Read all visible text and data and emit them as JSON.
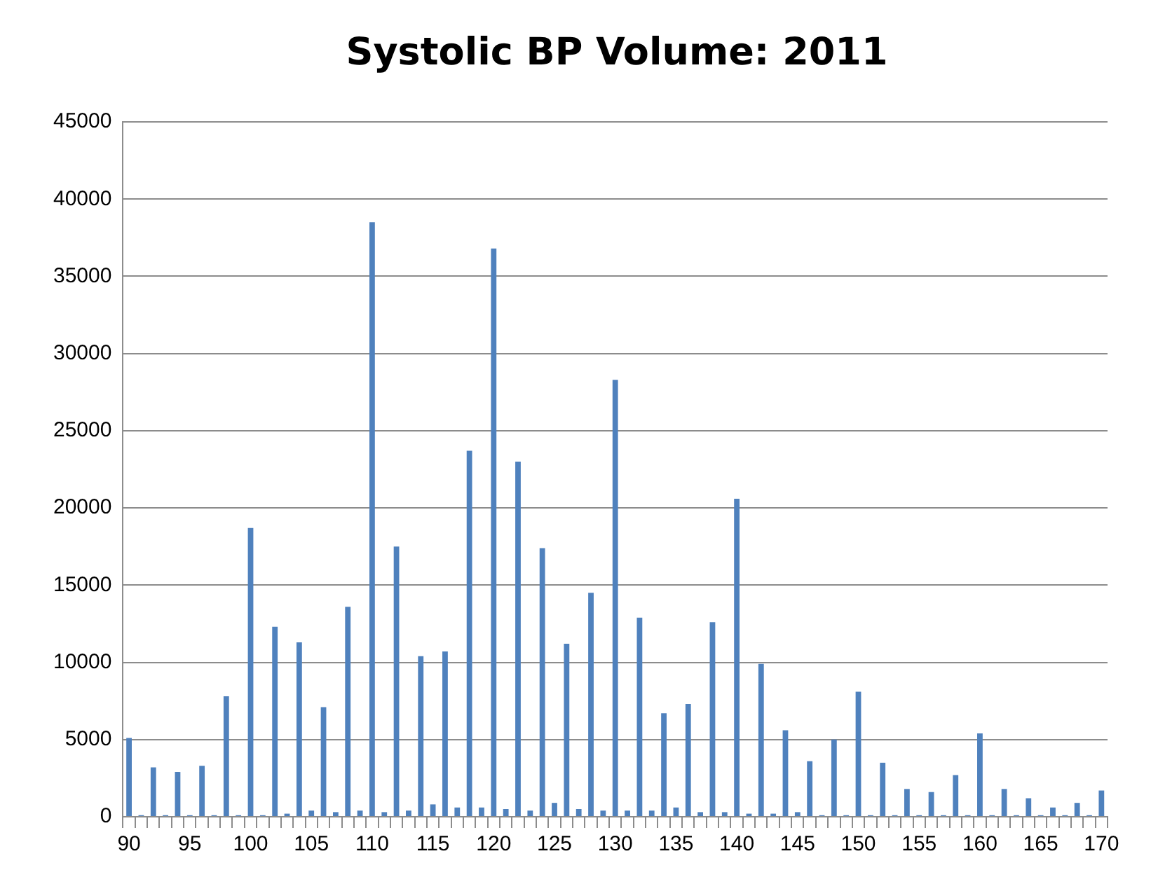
{
  "chart_data": {
    "type": "bar",
    "title": "Systolic BP Volume: 2011",
    "categories": [
      "90",
      null,
      null,
      null,
      null,
      "95",
      null,
      null,
      null,
      null,
      "100",
      null,
      null,
      null,
      null,
      "105",
      null,
      null,
      null,
      null,
      "110",
      null,
      null,
      null,
      null,
      "115",
      null,
      null,
      null,
      null,
      "120",
      null,
      null,
      null,
      null,
      "125",
      null,
      null,
      null,
      null,
      "130",
      null,
      null,
      null,
      null,
      "135",
      null,
      null,
      null,
      null,
      "140",
      null,
      null,
      null,
      null,
      "145",
      null,
      null,
      null,
      null,
      "150",
      null,
      null,
      null,
      null,
      "155",
      null,
      null,
      null,
      null,
      "160",
      null,
      null,
      null,
      null,
      "165",
      null,
      null,
      null,
      null,
      "170"
    ],
    "values": [
      5100,
      100,
      3200,
      100,
      2900,
      100,
      3300,
      100,
      7800,
      100,
      18700,
      100,
      12300,
      200,
      11300,
      400,
      7100,
      300,
      13600,
      400,
      38500,
      300,
      17500,
      400,
      10400,
      800,
      10700,
      600,
      23700,
      600,
      36800,
      500,
      23000,
      400,
      17400,
      900,
      11200,
      500,
      14500,
      400,
      28300,
      400,
      12900,
      400,
      6700,
      600,
      7300,
      300,
      12600,
      300,
      20600,
      200,
      9900,
      200,
      5600,
      300,
      3600,
      100,
      5000,
      100,
      8100,
      100,
      3500,
      100,
      1800,
      100,
      1600,
      100,
      2700,
      100,
      5400,
      100,
      1800,
      100,
      1200,
      100,
      600,
      100,
      900,
      100,
      1700
    ],
    "color": "#4f81bd",
    "ylim": [
      0,
      45000
    ],
    "yticks": [
      0,
      5000,
      10000,
      15000,
      20000,
      25000,
      30000,
      35000,
      40000,
      45000
    ],
    "grid": "y",
    "legend": false
  }
}
